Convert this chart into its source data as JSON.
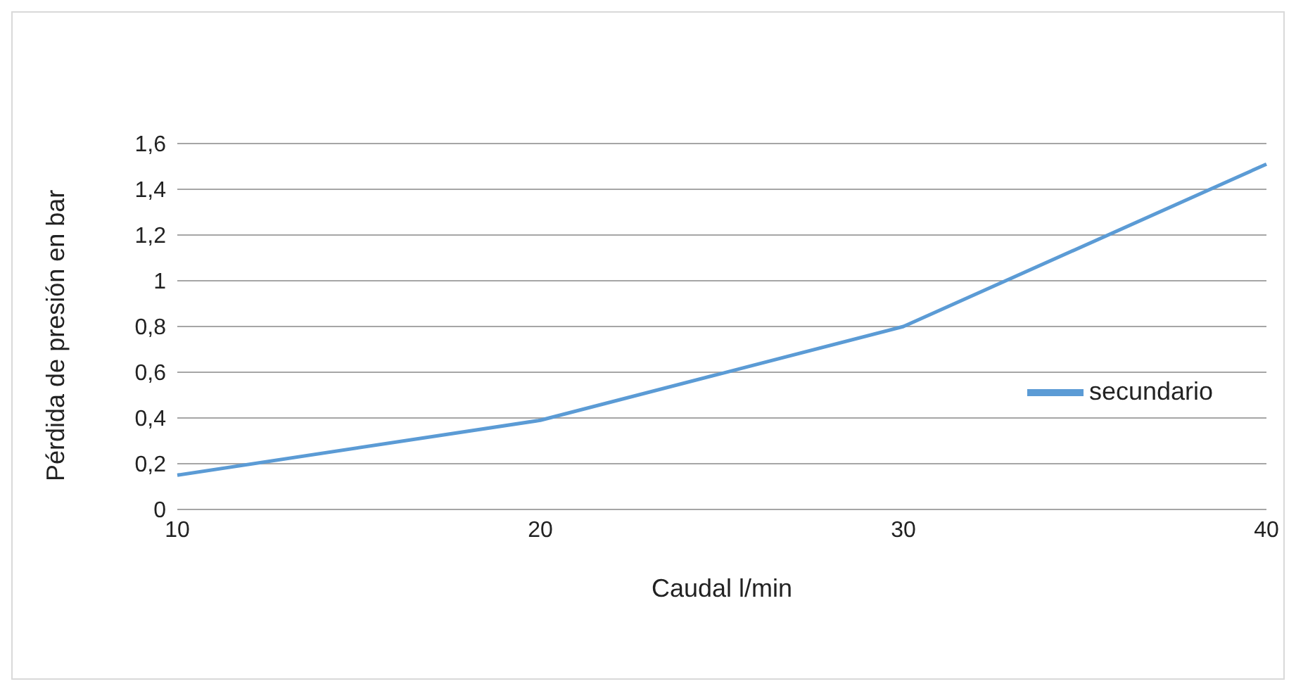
{
  "chart_data": {
    "type": "line",
    "xlabel": "Caudal l/min",
    "ylabel": "Pérdida de presión en bar",
    "categories": [
      "10",
      "20",
      "30",
      "40"
    ],
    "series": [
      {
        "name": "secundario",
        "color": "#5b9bd5",
        "values": [
          0.15,
          0.39,
          0.8,
          1.51
        ]
      }
    ],
    "ylim": [
      0,
      1.6
    ],
    "yticks": [
      0,
      {
        "value": 0.2,
        "label": "0,2"
      },
      {
        "value": 0.4,
        "label": "0,4"
      },
      {
        "value": 0.6,
        "label": "0,6"
      },
      {
        "value": 0.8,
        "label": "0,8"
      },
      1,
      {
        "value": 1.2,
        "label": "1,2"
      },
      {
        "value": 1.4,
        "label": "1,4"
      },
      {
        "value": 1.6,
        "label": "1,6"
      }
    ],
    "grid": "y",
    "legend": "right",
    "marker": "none",
    "line_style": "solid"
  }
}
